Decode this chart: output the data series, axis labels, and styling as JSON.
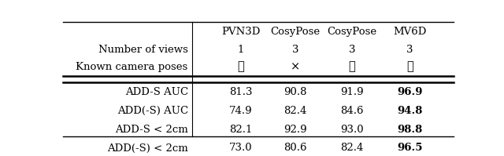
{
  "col_headers": [
    "PVN3D",
    "CosyPose",
    "CosyPose",
    "MV6D"
  ],
  "row_labels_header": [
    "Number of views",
    "Known camera poses"
  ],
  "header_data": [
    [
      "1",
      "3",
      "3",
      "3"
    ],
    [
      "✓",
      "×",
      "✓",
      "✓"
    ]
  ],
  "metric_rows": [
    [
      "ADD-S AUC",
      "81.3",
      "90.8",
      "91.9",
      "96.9"
    ],
    [
      "ADD(-S) AUC",
      "74.9",
      "82.4",
      "84.6",
      "94.8"
    ],
    [
      "ADD-S < 2cm",
      "82.1",
      "92.9",
      "93.0",
      "98.8"
    ],
    [
      "ADD(-S) < 2cm",
      "73.0",
      "80.6",
      "82.4",
      "96.5"
    ]
  ],
  "bold_col": 3,
  "table_bg": "#ffffff",
  "fontsize": 9.5
}
